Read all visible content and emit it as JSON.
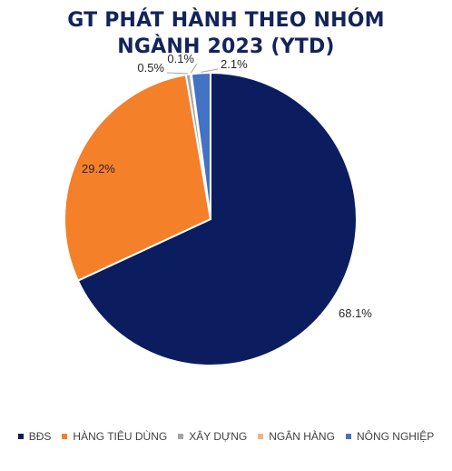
{
  "chart_data": {
    "type": "pie",
    "title_line1": "GT PHÁT HÀNH THEO NHÓM",
    "title_line2": "NGÀNH 2023 (YTD)",
    "categories": [
      "BĐS",
      "HÀNG TIÊU DÙNG",
      "XÂY DỰNG",
      "NGÂN HÀNG",
      "NÔNG NGHIỆP"
    ],
    "values": [
      68.1,
      29.2,
      0.5,
      0.1,
      2.1
    ],
    "labels": [
      "68.1%",
      "29.2%",
      "0.5%",
      "0.1%",
      "2.1%"
    ],
    "colors": [
      "#0b1d5f",
      "#f5802a",
      "#a5a5a5",
      "#f4b183",
      "#4472c4"
    ],
    "legend_position": "bottom"
  }
}
